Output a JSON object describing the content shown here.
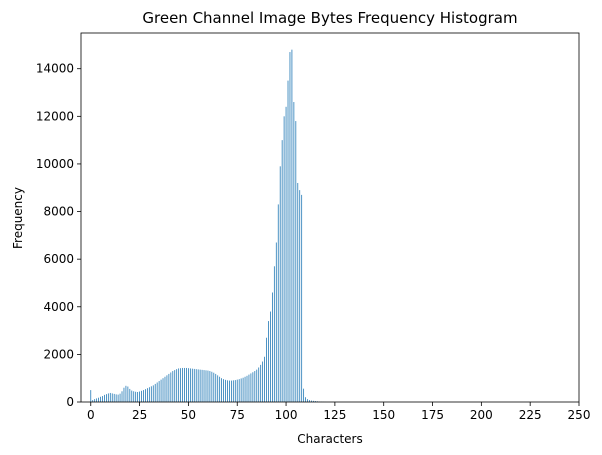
{
  "chart_data": {
    "type": "bar",
    "title": "Green Channel Image Bytes Frequency Histogram",
    "xlabel": "Characters",
    "ylabel": "Frequency",
    "xlim": [
      -5,
      250
    ],
    "ylim": [
      0,
      15500
    ],
    "xticks": [
      0,
      25,
      50,
      75,
      100,
      125,
      150,
      175,
      200,
      225,
      250
    ],
    "yticks": [
      0,
      2000,
      4000,
      6000,
      8000,
      10000,
      12000,
      14000
    ],
    "grid": false,
    "bar_color": "#1f77b4",
    "x": [
      0,
      1,
      2,
      3,
      4,
      5,
      6,
      7,
      8,
      9,
      10,
      11,
      12,
      13,
      14,
      15,
      16,
      17,
      18,
      19,
      20,
      21,
      22,
      23,
      24,
      25,
      26,
      27,
      28,
      29,
      30,
      31,
      32,
      33,
      34,
      35,
      36,
      37,
      38,
      39,
      40,
      41,
      42,
      43,
      44,
      45,
      46,
      47,
      48,
      49,
      50,
      51,
      52,
      53,
      54,
      55,
      56,
      57,
      58,
      59,
      60,
      61,
      62,
      63,
      64,
      65,
      66,
      67,
      68,
      69,
      70,
      71,
      72,
      73,
      74,
      75,
      76,
      77,
      78,
      79,
      80,
      81,
      82,
      83,
      84,
      85,
      86,
      87,
      88,
      89,
      90,
      91,
      92,
      93,
      94,
      95,
      96,
      97,
      98,
      99,
      100,
      101,
      102,
      103,
      104,
      105,
      106,
      107,
      108,
      109,
      110,
      111,
      112,
      113,
      114,
      115,
      116,
      117,
      118,
      119,
      120
    ],
    "values": [
      500,
      80,
      120,
      150,
      180,
      220,
      250,
      300,
      330,
      360,
      380,
      360,
      340,
      320,
      310,
      350,
      450,
      600,
      680,
      650,
      550,
      480,
      450,
      430,
      420,
      440,
      470,
      500,
      540,
      580,
      620,
      660,
      700,
      760,
      820,
      880,
      940,
      1000,
      1060,
      1120,
      1180,
      1240,
      1300,
      1340,
      1380,
      1410,
      1420,
      1430,
      1430,
      1430,
      1420,
      1410,
      1400,
      1390,
      1380,
      1370,
      1360,
      1350,
      1340,
      1330,
      1320,
      1300,
      1270,
      1230,
      1180,
      1120,
      1060,
      1000,
      960,
      930,
      910,
      900,
      900,
      910,
      920,
      940,
      960,
      990,
      1020,
      1060,
      1100,
      1150,
      1200,
      1250,
      1300,
      1360,
      1450,
      1560,
      1700,
      1900,
      2700,
      3400,
      3800,
      4600,
      5700,
      6700,
      8300,
      9900,
      11000,
      12000,
      12400,
      13500,
      14700,
      14800,
      12600,
      11800,
      9200,
      8900,
      8700,
      560,
      200,
      120,
      80,
      60,
      50,
      40,
      30,
      20,
      15,
      10,
      5
    ],
    "fill_levels_note": "",
    "bar_width_data": 0.4
  }
}
